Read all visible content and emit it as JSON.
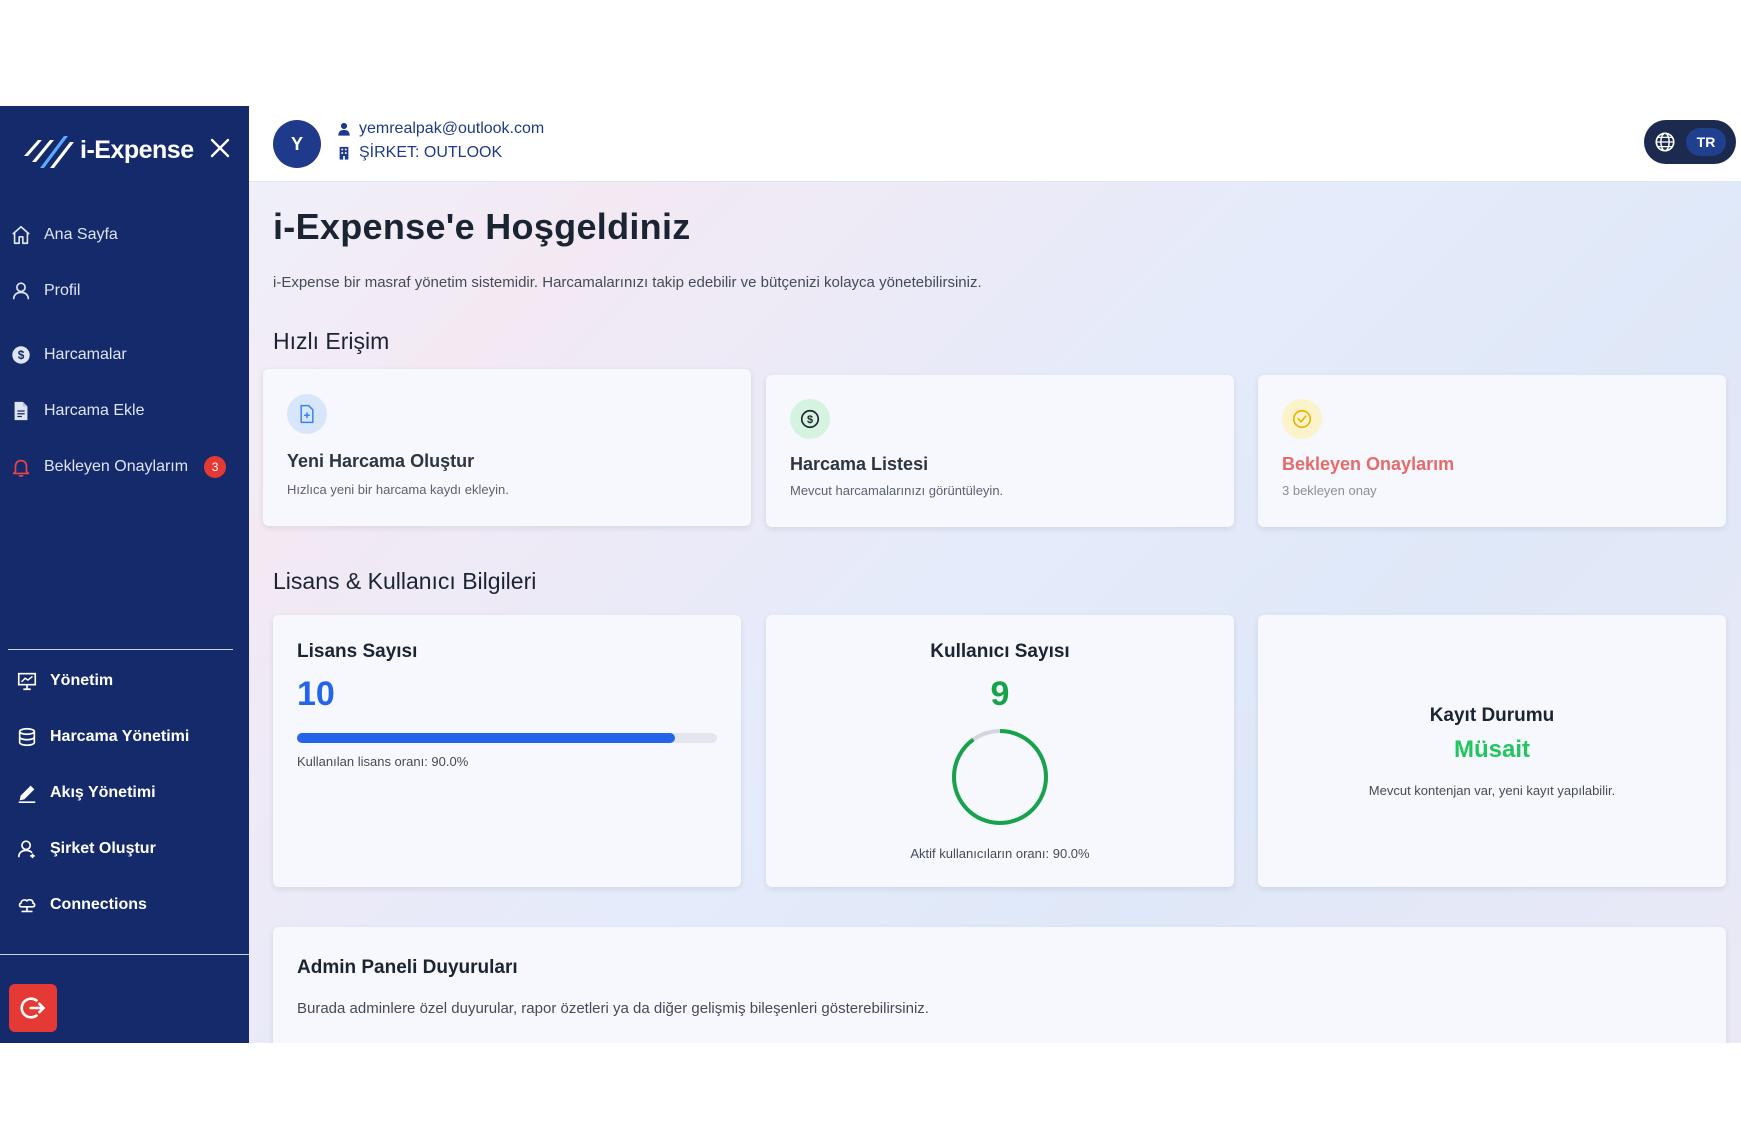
{
  "brand": {
    "name": "i-Expense"
  },
  "sidebar": {
    "items": [
      {
        "label": "Ana Sayfa",
        "icon": "home-icon"
      },
      {
        "label": "Profil",
        "icon": "user-icon"
      },
      {
        "label": "Harcamalar",
        "icon": "dollar-icon"
      },
      {
        "label": "Harcama Ekle",
        "icon": "document-icon"
      },
      {
        "label": "Bekleyen Onaylarım",
        "icon": "bell-icon",
        "badge": "3"
      }
    ],
    "admin_items": [
      {
        "label": "Yönetim",
        "icon": "presentation-chart-icon"
      },
      {
        "label": "Harcama Yönetimi",
        "icon": "stack-icon"
      },
      {
        "label": "Akış Yönetimi",
        "icon": "pen-icon"
      },
      {
        "label": "Şirket Oluştur",
        "icon": "user-add-icon"
      },
      {
        "label": "Connections",
        "icon": "cloud-icon"
      }
    ]
  },
  "header": {
    "avatar_initial": "Y",
    "email": "yemrealpak@outlook.com",
    "company": "ŞİRKET: OUTLOOK",
    "language": "TR"
  },
  "main": {
    "title": "i-Expense'e Hoşgeldiniz",
    "description": "i-Expense bir masraf yönetim sistemidir. Harcamalarınızı takip edebilir ve bütçenizi kolayca yönetebilirsiniz.",
    "quick_access_title": "Hızlı Erişim",
    "quick_access": [
      {
        "title": "Yeni Harcama Oluştur",
        "subtitle": "Hızlıca yeni bir harcama kaydı ekleyin.",
        "icon": "add-document-icon"
      },
      {
        "title": "Harcama Listesi",
        "subtitle": "Mevcut harcamalarınızı görüntüleyin.",
        "icon": "dollar-circle-icon"
      },
      {
        "title": "Bekleyen Onaylarım",
        "subtitle": "3 bekleyen onay",
        "icon": "check-circle-icon"
      }
    ],
    "license_section_title": "Lisans & Kullanıcı Bilgileri",
    "license": {
      "title": "Lisans Sayısı",
      "value": "10",
      "usage_fraction": 0.9,
      "note": "Kullanılan lisans oranı: 90.0%"
    },
    "users": {
      "title": "Kullanıcı Sayısı",
      "value": "9",
      "active_fraction": 0.9,
      "note": "Aktif kullanıcıların oranı: 90.0%"
    },
    "registration": {
      "title": "Kayıt Durumu",
      "status": "Müsait",
      "note": "Mevcut kontenjan var, yeni kayıt yapılabilir."
    },
    "announcements": {
      "title": "Admin Paneli Duyuruları",
      "body": "Burada adminlere özel duyurular, rapor özetleri ya da diğer gelişmiş bileşenleri gösterebilirsiniz."
    }
  },
  "colors": {
    "sidebar": "#142a6b",
    "primary": "#2563eb",
    "success": "#16a34a",
    "status_ok": "#22c55e",
    "pending": "#e56a6a",
    "danger": "#e53935"
  }
}
